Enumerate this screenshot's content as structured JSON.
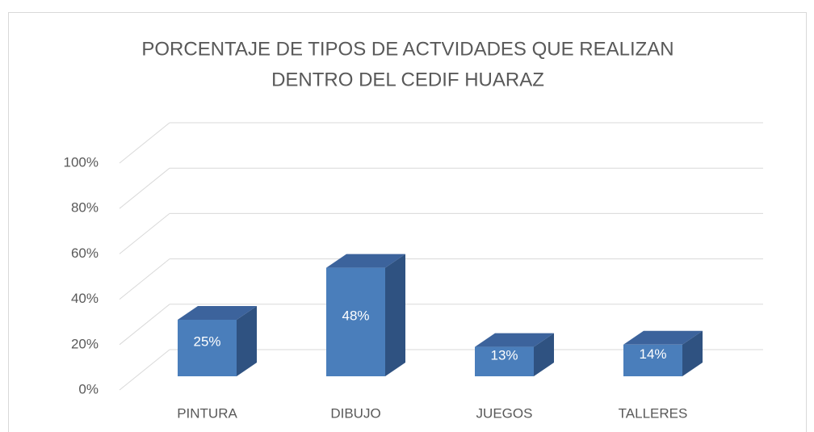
{
  "chart_data": {
    "type": "bar3d",
    "title": [
      "PORCENTAJE DE TIPOS DE ACTVIDADES QUE REALIZAN",
      "DENTRO DEL CEDIF HUARAZ"
    ],
    "categories": [
      "PINTURA",
      "DIBUJO",
      "JUEGOS",
      "TALLERES"
    ],
    "values": [
      25,
      48,
      13,
      14
    ],
    "value_labels": [
      "25%",
      "48%",
      "13%",
      "14%"
    ],
    "color": "#4a7ebb",
    "ylim": [
      0,
      100
    ],
    "yticks": [
      {
        "value": 0,
        "label": "0%"
      },
      {
        "value": 20,
        "label": "20%"
      },
      {
        "value": 40,
        "label": "40%"
      },
      {
        "value": 60,
        "label": "60%"
      },
      {
        "value": 80,
        "label": "80%"
      },
      {
        "value": 100,
        "label": "100%"
      }
    ],
    "grid": true
  }
}
